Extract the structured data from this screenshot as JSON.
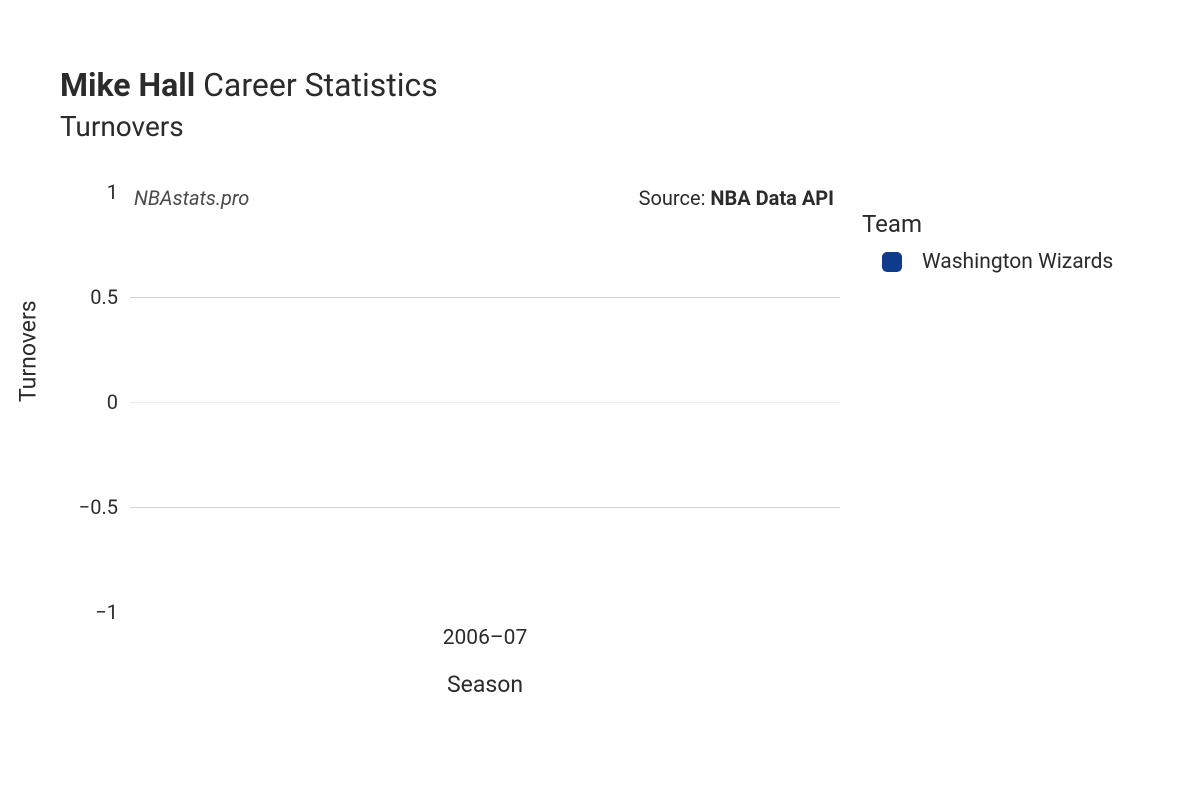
{
  "title": {
    "player_name": "Mike Hall",
    "suffix": "Career Statistics",
    "subtitle": "Turnovers"
  },
  "watermark": "NBAstats.pro",
  "source": {
    "prefix": "Source: ",
    "name": "NBA Data API"
  },
  "chart": {
    "type": "bar",
    "x_axis_title": "Season",
    "y_axis_title": "Turnovers",
    "categories": [
      "2006–07"
    ],
    "series": [
      {
        "team": "Washington Wizards",
        "color": "#0f3b8c",
        "values": [
          0
        ]
      }
    ],
    "ylim": [
      -1,
      1
    ],
    "yticks": [
      {
        "value": 1,
        "label": "1",
        "grid_color": null
      },
      {
        "value": 0.5,
        "label": "0.5",
        "grid_color": "#d6d6d6"
      },
      {
        "value": 0,
        "label": "0",
        "grid_color": "#eeeeee"
      },
      {
        "value": -0.5,
        "label": "−0.5",
        "grid_color": "#d6d6d6"
      },
      {
        "value": -1,
        "label": "−1",
        "grid_color": null
      }
    ],
    "background_color": "#ffffff",
    "tick_fontsize": 20,
    "axis_title_fontsize": 23
  },
  "legend": {
    "title": "Team"
  }
}
